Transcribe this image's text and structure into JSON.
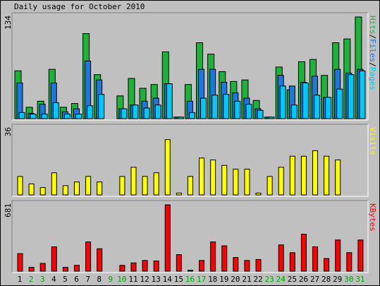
{
  "title": "Daily usage for October 2010",
  "chart_data": {
    "type": "bar",
    "title": "Daily usage for October 2010",
    "categories": [
      "1",
      "2",
      "3",
      "4",
      "5",
      "6",
      "7",
      "8",
      "9",
      "10",
      "11",
      "12",
      "13",
      "14",
      "15",
      "16",
      "17",
      "18",
      "19",
      "20",
      "21",
      "22",
      "23",
      "24",
      "25",
      "26",
      "27",
      "28",
      "29",
      "30",
      "31"
    ],
    "weekend_days": [
      "2",
      "3",
      "9",
      "10",
      "16",
      "17",
      "23",
      "24",
      "30",
      "31"
    ],
    "colors": {
      "hits": "#1db33a",
      "files": "#1a78e0",
      "pages": "#00c8f8",
      "visits": "#ffff00",
      "kbytes": "#ff0000",
      "weekday_label": "#000000",
      "weekend_label": "#00a000",
      "pages_legend": "#00c8f8",
      "files_legend": "#1a78e0",
      "hits_legend": "#1db33a",
      "visits_legend": "#ffff00",
      "kbytes_legend": "#ff0000"
    },
    "panels": [
      {
        "id": "hits-files-pages",
        "ymax_label": "134",
        "ymax": 134,
        "legend": [
          "Pages",
          "Files",
          "Hits"
        ],
        "legend_sep": "/",
        "series": [
          {
            "name": "Hits",
            "values": [
              63,
              15,
              23,
              65,
              15,
              20,
              112,
              58,
              0,
              30,
              53,
              40,
              45,
              88,
              2,
              45,
              100,
              85,
              62,
              49,
              51,
              24,
              2,
              68,
              38,
              75,
              78,
              57,
              100,
              105,
              134
            ]
          },
          {
            "name": "Files",
            "values": [
              47,
              7,
              19,
              47,
              9,
              13,
              76,
              51,
              0,
              13,
              18,
              23,
              27,
              46,
              2,
              23,
              65,
              65,
              48,
              34,
              27,
              13,
              2,
              57,
              43,
              48,
              56,
              28,
              65,
              60,
              65
            ]
          },
          {
            "name": "Pages",
            "values": [
              8,
              6,
              6,
              21,
              6,
              6,
              17,
              32,
              0,
              13,
              18,
              14,
              18,
              46,
              2,
              8,
              27,
              31,
              32,
              23,
              19,
              11,
              2,
              43,
              18,
              47,
              31,
              28,
              39,
              58,
              63
            ]
          }
        ]
      },
      {
        "id": "visits",
        "ymax_label": "36",
        "ymax": 36,
        "legend": [
          "Visits"
        ],
        "series": [
          {
            "name": "Visits",
            "values": [
              10,
              6,
              4,
              12,
              5,
              7,
              10,
              7,
              0,
              10,
              15,
              10,
              12,
              30,
              1,
              10,
              20,
              19,
              16,
              14,
              14,
              1,
              10,
              15,
              21,
              21,
              24,
              21,
              19,
              0,
              0
            ]
          }
        ]
      },
      {
        "id": "kbytes",
        "ymax_label": "681",
        "ymax": 681,
        "legend": [
          "KBytes"
        ],
        "series": [
          {
            "name": "KBytes",
            "values": [
              180,
              40,
              80,
              250,
              40,
              60,
              300,
              230,
              0,
              60,
              85,
              110,
              105,
              681,
              170,
              10,
              110,
              300,
              260,
              140,
              110,
              120,
              0,
              270,
              190,
              380,
              250,
              130,
              320,
              190,
              320
            ]
          }
        ]
      }
    ]
  }
}
